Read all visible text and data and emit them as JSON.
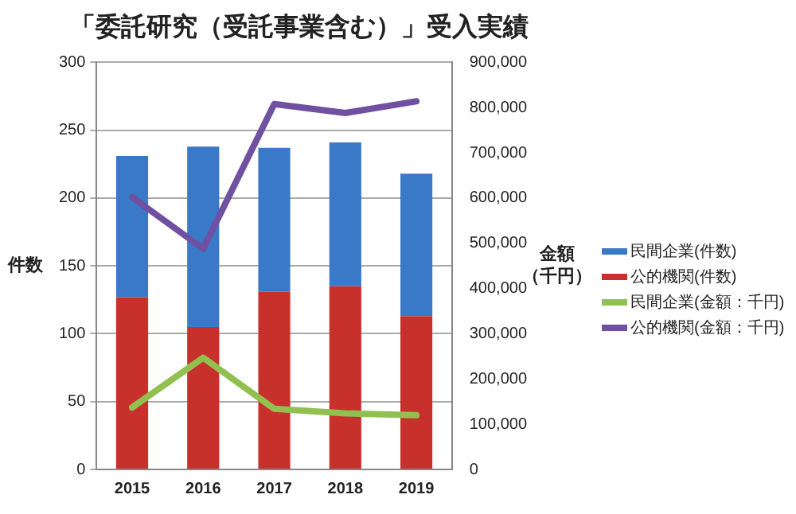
{
  "chart_data": {
    "type": "bar",
    "title": "「委託研究（受託事業含む）」受入実績",
    "ylabel": "件数",
    "y2label": "金額（千円）",
    "categories": [
      "2015",
      "2016",
      "2017",
      "2018",
      "2019"
    ],
    "stacked": true,
    "series": [
      {
        "name": "公的機関(件数)",
        "color": "#c8302c",
        "values": [
          127,
          105,
          131,
          135,
          113
        ]
      },
      {
        "name": "民間企業(件数)",
        "color": "#3a78c8",
        "values": [
          104,
          133,
          106,
          106,
          105
        ]
      },
      {
        "name": "民間企業(金額：千円)",
        "type": "line",
        "axis": "y2",
        "color": "#92c050",
        "values": [
          137000,
          247000,
          134000,
          124000,
          120000
        ]
      },
      {
        "name": "公的機関(金額：千円)",
        "type": "line",
        "axis": "y2",
        "color": "#7050a0",
        "values": [
          602000,
          488000,
          808000,
          788000,
          814000
        ]
      }
    ],
    "ylim": [
      0,
      300
    ],
    "yticks": [
      0,
      50,
      100,
      150,
      200,
      250,
      300
    ],
    "y2lim": [
      0,
      900000
    ],
    "y2ticks": [
      {
        "value": 0,
        "label": "0"
      },
      {
        "value": 100000,
        "label": "100,000"
      },
      {
        "value": 200000,
        "label": "200,000"
      },
      {
        "value": 300000,
        "label": "300,000"
      },
      {
        "value": 400000,
        "label": "400,000"
      },
      {
        "value": 500000,
        "label": "500,000"
      },
      {
        "value": 600000,
        "label": "600,000"
      },
      {
        "value": 700000,
        "label": "700,000"
      },
      {
        "value": 800000,
        "label": "800,000"
      },
      {
        "value": 900000,
        "label": "900,000"
      }
    ],
    "grid": "y",
    "legend": "right",
    "marker": "none",
    "line_style": "solid"
  }
}
